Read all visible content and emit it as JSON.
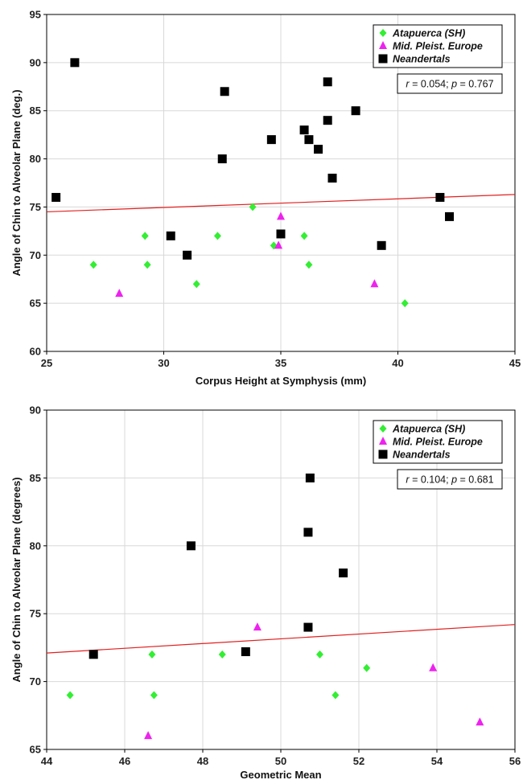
{
  "chart_data": [
    {
      "type": "scatter",
      "xlabel": "Corpus Height at Symphysis (mm)",
      "ylabel": "Angle of Chin to Alveolar Plane (deg.)",
      "xlim": [
        25,
        45
      ],
      "ylim": [
        60,
        95
      ],
      "xticks": [
        "25",
        "30",
        "35",
        "40",
        "45"
      ],
      "yticks": [
        "60",
        "65",
        "70",
        "75",
        "80",
        "85",
        "90",
        "95"
      ],
      "grid": true,
      "legend_position": "top-right",
      "stat": {
        "r_label": "r",
        "r_value": " = 0.054; ",
        "p_label": "p",
        "p_value": " = 0.767"
      },
      "fit_line": {
        "x": [
          25,
          45
        ],
        "y": [
          74.5,
          76.3
        ]
      },
      "series": [
        {
          "name": "Atapuerca (SH)",
          "marker": "diamond",
          "color": "#33ee33",
          "x": [
            27.0,
            29.2,
            29.3,
            31.4,
            32.3,
            33.8,
            34.7,
            36.0,
            36.2,
            40.3
          ],
          "y": [
            69,
            72,
            69,
            67,
            72,
            75,
            71,
            72,
            69,
            65
          ]
        },
        {
          "name": "Mid. Pleist. Europe",
          "marker": "triangle",
          "color": "#ee22ee",
          "x": [
            28.1,
            34.9,
            35.0,
            39.0
          ],
          "y": [
            66,
            71,
            74,
            67
          ]
        },
        {
          "name": "Neandertals",
          "marker": "square",
          "color": "#000000",
          "x": [
            25.4,
            26.2,
            30.3,
            31.0,
            32.5,
            32.6,
            34.6,
            35.0,
            36.0,
            36.2,
            36.6,
            37.0,
            37.0,
            37.2,
            38.2,
            39.3,
            41.8,
            42.2
          ],
          "y": [
            76,
            90,
            72,
            70,
            80,
            87,
            82,
            72.2,
            83,
            82,
            81,
            88,
            84,
            78,
            85,
            71,
            76,
            74
          ]
        }
      ]
    },
    {
      "type": "scatter",
      "xlabel": "Geometric Mean",
      "ylabel": "Angle of Chin to Alveolar Plane (degrees)",
      "xlim": [
        44,
        56
      ],
      "ylim": [
        65,
        90
      ],
      "xticks": [
        "44",
        "46",
        "48",
        "50",
        "52",
        "54",
        "56"
      ],
      "yticks": [
        "65",
        "70",
        "75",
        "80",
        "85",
        "90"
      ],
      "grid": true,
      "legend_position": "top-right",
      "stat": {
        "r_label": "r",
        "r_value": " = 0.104; ",
        "p_label": "p",
        "p_value": " = 0.681"
      },
      "fit_line": {
        "x": [
          44,
          56
        ],
        "y": [
          72.1,
          74.2
        ]
      },
      "series": [
        {
          "name": "Atapuerca (SH)",
          "marker": "diamond",
          "color": "#33ee33",
          "x": [
            44.6,
            46.7,
            46.75,
            48.5,
            51.0,
            51.4,
            52.2
          ],
          "y": [
            69,
            72,
            69,
            72,
            72,
            69,
            71
          ]
        },
        {
          "name": "Mid. Pleist. Europe",
          "marker": "triangle",
          "color": "#ee22ee",
          "x": [
            46.6,
            49.4,
            53.9,
            55.1
          ],
          "y": [
            66,
            74,
            71,
            67
          ]
        },
        {
          "name": "Neandertals",
          "marker": "square",
          "color": "#000000",
          "x": [
            45.2,
            47.7,
            49.1,
            50.7,
            50.7,
            50.75,
            51.6
          ],
          "y": [
            72,
            80,
            72.2,
            81,
            74,
            85,
            78
          ]
        }
      ]
    }
  ]
}
